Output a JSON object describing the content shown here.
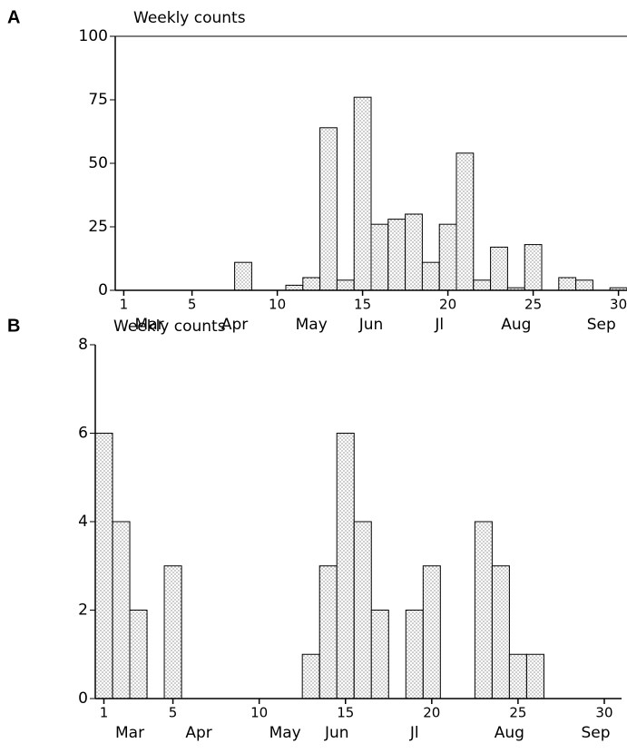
{
  "chart_data": [
    {
      "type": "bar",
      "panel": "A",
      "ylabel": "Weekly counts",
      "x": [
        1,
        2,
        3,
        4,
        5,
        6,
        7,
        8,
        9,
        10,
        11,
        12,
        13,
        14,
        15,
        16,
        17,
        18,
        19,
        20,
        21,
        22,
        23,
        24,
        25,
        26,
        27,
        28,
        29,
        30
      ],
      "values": [
        0,
        0,
        0,
        0,
        0,
        0,
        0,
        11,
        0,
        0,
        2,
        5,
        64,
        4,
        76,
        26,
        28,
        30,
        11,
        26,
        54,
        4,
        17,
        1,
        18,
        0,
        5,
        4,
        0,
        1
      ],
      "xlim": [
        0.5,
        30.5
      ],
      "xticks": [
        1,
        5,
        10,
        15,
        20,
        25,
        30
      ],
      "month_ticks": [
        {
          "value": 2.5,
          "label": "Mar"
        },
        {
          "value": 7.5,
          "label": "Apr"
        },
        {
          "value": 12,
          "label": "May"
        },
        {
          "value": 15.5,
          "label": "Jun"
        },
        {
          "value": 19.5,
          "label": "Jl"
        },
        {
          "value": 24,
          "label": "Aug"
        },
        {
          "value": 29,
          "label": "Sep"
        }
      ],
      "ylim": [
        0,
        100
      ],
      "yticks": [
        0,
        25,
        50,
        75,
        100
      ]
    },
    {
      "type": "bar",
      "panel": "B",
      "ylabel": "Weekly counts",
      "x": [
        1,
        2,
        3,
        4,
        5,
        6,
        7,
        8,
        9,
        10,
        11,
        12,
        13,
        14,
        15,
        16,
        17,
        18,
        19,
        20,
        21,
        22,
        23,
        24,
        25,
        26,
        27,
        28,
        29,
        30
      ],
      "values": [
        6,
        4,
        2,
        0,
        3,
        0,
        0,
        0,
        0,
        0,
        0,
        0,
        1,
        3,
        6,
        4,
        2,
        0,
        2,
        3,
        0,
        0,
        4,
        3,
        1,
        1,
        0,
        0,
        0,
        0
      ],
      "xlim": [
        0.5,
        31
      ],
      "xticks": [
        1,
        5,
        10,
        15,
        20,
        25,
        30
      ],
      "month_ticks": [
        {
          "value": 2.5,
          "label": "Mar"
        },
        {
          "value": 6.5,
          "label": "Apr"
        },
        {
          "value": 11.5,
          "label": "May"
        },
        {
          "value": 14.5,
          "label": "Jun"
        },
        {
          "value": 19,
          "label": "Jl"
        },
        {
          "value": 24.5,
          "label": "Aug"
        },
        {
          "value": 29.5,
          "label": "Sep"
        }
      ],
      "ylim": [
        0,
        8
      ],
      "yticks": [
        0,
        2,
        4,
        6,
        8
      ]
    }
  ]
}
